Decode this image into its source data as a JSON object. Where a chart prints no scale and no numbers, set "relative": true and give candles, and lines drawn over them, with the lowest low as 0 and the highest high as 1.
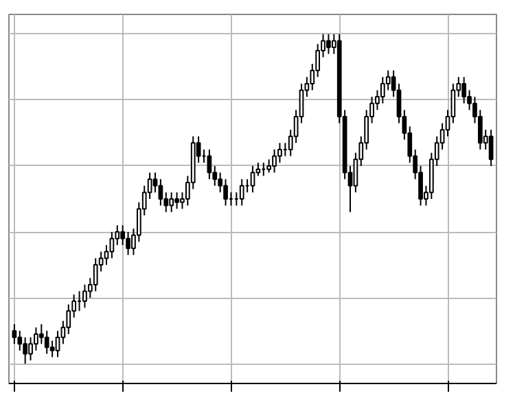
{
  "chart_data": {
    "type": "candlestick",
    "relative": true,
    "grid": true,
    "tick_labels": false,
    "categories": [
      null,
      null,
      null,
      null,
      null,
      null,
      null,
      null,
      null,
      null,
      null,
      null,
      null,
      null,
      null,
      null,
      null,
      null,
      null,
      null,
      null,
      null,
      null,
      null,
      null,
      null,
      null,
      null,
      null,
      null,
      null,
      null,
      null,
      null,
      null,
      null,
      null,
      null,
      null,
      null,
      null,
      null,
      null,
      null,
      null,
      null,
      null,
      null,
      null,
      null,
      null,
      null,
      null,
      null,
      null,
      null,
      null,
      null,
      null,
      null,
      null,
      null,
      null,
      null,
      null,
      null,
      null,
      null,
      null,
      null,
      null,
      null,
      null,
      null,
      null,
      null,
      null,
      null,
      null,
      null,
      null,
      null,
      null,
      null,
      null,
      null,
      null,
      null,
      null
    ],
    "ohlc": [
      [
        0.1,
        0.12,
        0.06,
        0.08
      ],
      [
        0.08,
        0.1,
        0.04,
        0.06
      ],
      [
        0.06,
        0.08,
        0.0,
        0.03
      ],
      [
        0.03,
        0.08,
        0.01,
        0.06
      ],
      [
        0.06,
        0.11,
        0.04,
        0.09
      ],
      [
        0.09,
        0.12,
        0.06,
        0.08
      ],
      [
        0.08,
        0.1,
        0.03,
        0.05
      ],
      [
        0.05,
        0.07,
        0.02,
        0.04
      ],
      [
        0.04,
        0.1,
        0.02,
        0.08
      ],
      [
        0.08,
        0.13,
        0.06,
        0.11
      ],
      [
        0.11,
        0.18,
        0.09,
        0.16
      ],
      [
        0.16,
        0.21,
        0.14,
        0.19
      ],
      [
        0.19,
        0.22,
        0.16,
        0.19
      ],
      [
        0.19,
        0.24,
        0.17,
        0.22
      ],
      [
        0.22,
        0.26,
        0.2,
        0.24
      ],
      [
        0.24,
        0.32,
        0.22,
        0.3
      ],
      [
        0.3,
        0.34,
        0.28,
        0.32
      ],
      [
        0.32,
        0.36,
        0.3,
        0.34
      ],
      [
        0.34,
        0.4,
        0.32,
        0.38
      ],
      [
        0.38,
        0.42,
        0.36,
        0.4
      ],
      [
        0.4,
        0.42,
        0.36,
        0.38
      ],
      [
        0.38,
        0.4,
        0.33,
        0.35
      ],
      [
        0.35,
        0.41,
        0.33,
        0.39
      ],
      [
        0.39,
        0.49,
        0.37,
        0.47
      ],
      [
        0.47,
        0.54,
        0.45,
        0.52
      ],
      [
        0.52,
        0.58,
        0.5,
        0.56
      ],
      [
        0.56,
        0.58,
        0.52,
        0.54
      ],
      [
        0.54,
        0.56,
        0.48,
        0.5
      ],
      [
        0.5,
        0.52,
        0.46,
        0.48
      ],
      [
        0.48,
        0.52,
        0.46,
        0.5
      ],
      [
        0.5,
        0.52,
        0.47,
        0.49
      ],
      [
        0.49,
        0.52,
        0.47,
        0.5
      ],
      [
        0.5,
        0.57,
        0.48,
        0.55
      ],
      [
        0.55,
        0.69,
        0.53,
        0.67
      ],
      [
        0.67,
        0.69,
        0.61,
        0.63
      ],
      [
        0.63,
        0.65,
        0.61,
        0.63
      ],
      [
        0.63,
        0.65,
        0.56,
        0.58
      ],
      [
        0.58,
        0.6,
        0.54,
        0.56
      ],
      [
        0.56,
        0.58,
        0.52,
        0.54
      ],
      [
        0.54,
        0.56,
        0.48,
        0.5
      ],
      [
        0.5,
        0.52,
        0.48,
        0.5
      ],
      [
        0.5,
        0.52,
        0.48,
        0.5
      ],
      [
        0.5,
        0.56,
        0.48,
        0.54
      ],
      [
        0.54,
        0.56,
        0.52,
        0.54
      ],
      [
        0.54,
        0.6,
        0.52,
        0.58
      ],
      [
        0.58,
        0.61,
        0.57,
        0.59
      ],
      [
        0.59,
        0.61,
        0.57,
        0.59
      ],
      [
        0.59,
        0.62,
        0.58,
        0.6
      ],
      [
        0.6,
        0.65,
        0.58,
        0.63
      ],
      [
        0.63,
        0.67,
        0.61,
        0.65
      ],
      [
        0.65,
        0.67,
        0.63,
        0.65
      ],
      [
        0.65,
        0.71,
        0.63,
        0.69
      ],
      [
        0.69,
        0.77,
        0.67,
        0.75
      ],
      [
        0.75,
        0.85,
        0.73,
        0.83
      ],
      [
        0.83,
        0.87,
        0.81,
        0.85
      ],
      [
        0.85,
        0.91,
        0.83,
        0.89
      ],
      [
        0.89,
        0.97,
        0.87,
        0.95
      ],
      [
        0.95,
        1.0,
        0.93,
        0.98
      ],
      [
        0.98,
        1.0,
        0.94,
        0.96
      ],
      [
        0.96,
        1.0,
        0.94,
        0.98
      ],
      [
        0.98,
        1.0,
        0.73,
        0.75
      ],
      [
        0.75,
        0.77,
        0.56,
        0.58
      ],
      [
        0.58,
        0.6,
        0.46,
        0.54
      ],
      [
        0.54,
        0.64,
        0.52,
        0.62
      ],
      [
        0.62,
        0.69,
        0.6,
        0.67
      ],
      [
        0.67,
        0.77,
        0.65,
        0.75
      ],
      [
        0.75,
        0.81,
        0.73,
        0.79
      ],
      [
        0.79,
        0.83,
        0.77,
        0.81
      ],
      [
        0.81,
        0.87,
        0.79,
        0.85
      ],
      [
        0.85,
        0.89,
        0.83,
        0.87
      ],
      [
        0.87,
        0.89,
        0.81,
        0.83
      ],
      [
        0.83,
        0.85,
        0.73,
        0.75
      ],
      [
        0.75,
        0.77,
        0.68,
        0.7
      ],
      [
        0.7,
        0.72,
        0.61,
        0.63
      ],
      [
        0.63,
        0.65,
        0.56,
        0.58
      ],
      [
        0.58,
        0.6,
        0.48,
        0.5
      ],
      [
        0.5,
        0.54,
        0.48,
        0.52
      ],
      [
        0.52,
        0.64,
        0.5,
        0.62
      ],
      [
        0.62,
        0.69,
        0.6,
        0.67
      ],
      [
        0.67,
        0.73,
        0.65,
        0.71
      ],
      [
        0.71,
        0.77,
        0.69,
        0.75
      ],
      [
        0.75,
        0.85,
        0.73,
        0.83
      ],
      [
        0.83,
        0.87,
        0.81,
        0.85
      ],
      [
        0.85,
        0.87,
        0.79,
        0.81
      ],
      [
        0.81,
        0.83,
        0.77,
        0.79
      ],
      [
        0.79,
        0.81,
        0.73,
        0.75
      ],
      [
        0.75,
        0.77,
        0.65,
        0.67
      ],
      [
        0.67,
        0.71,
        0.65,
        0.69
      ],
      [
        0.69,
        0.71,
        0.6,
        0.62
      ]
    ]
  }
}
